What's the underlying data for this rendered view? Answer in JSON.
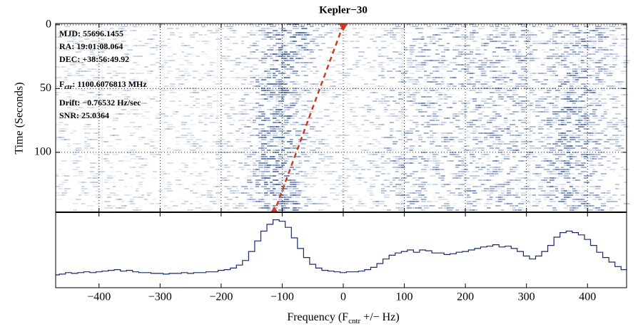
{
  "chart_data": {
    "type": "waterfall",
    "title": "Kepler−30",
    "ylabel": "Time (Seconds)",
    "xlabel": {
      "main": "Frequency (F",
      "sub": "cntr",
      "rest": " +/− Hz)"
    },
    "annotations": [
      "MJD: 55696.1455",
      "RA: 19:01:08.064",
      "DEC: +38:56:49.92"
    ],
    "fctr": {
      "main": "F",
      "sub": "ctr",
      "rest": ": 1100.6076813 MHz"
    },
    "annotations2": [
      "Drift: −0.76532 Hz/sec",
      "SNR: 25.0364"
    ],
    "xlim": [
      -471,
      464
    ],
    "xticks": [
      {
        "value": -400,
        "label": "−400"
      },
      {
        "value": -300,
        "label": "−300"
      },
      {
        "value": -200,
        "label": "−200"
      },
      {
        "value": -100,
        "label": "−100"
      },
      0,
      100,
      200,
      300,
      400
    ],
    "ylim": [
      -1,
      147
    ],
    "yticks": [
      0,
      50,
      100
    ],
    "grid": true,
    "drift_line": {
      "x": [
        0,
        -113
      ],
      "y": [
        0,
        147
      ],
      "color": "#d13b20"
    },
    "spectrum": {
      "color": "#1a2a6c",
      "ylim": [
        0,
        100
      ],
      "x": [
        -470,
        -460,
        -450,
        -440,
        -430,
        -420,
        -410,
        -400,
        -390,
        -380,
        -370,
        -360,
        -350,
        -340,
        -330,
        -320,
        -310,
        -300,
        -290,
        -280,
        -270,
        -260,
        -250,
        -240,
        -230,
        -220,
        -210,
        -200,
        -190,
        -180,
        -170,
        -160,
        -150,
        -140,
        -130,
        -120,
        -110,
        -100,
        -90,
        -80,
        -70,
        -60,
        -50,
        -40,
        -30,
        -20,
        -10,
        0,
        10,
        20,
        30,
        40,
        50,
        60,
        70,
        80,
        90,
        100,
        110,
        120,
        130,
        140,
        150,
        160,
        170,
        180,
        190,
        200,
        210,
        220,
        230,
        240,
        250,
        260,
        270,
        280,
        290,
        300,
        310,
        320,
        330,
        340,
        350,
        360,
        370,
        380,
        390,
        400,
        410,
        420,
        430,
        440,
        450,
        460
      ],
      "values": [
        17,
        18,
        20,
        19,
        20,
        21,
        20,
        21,
        22,
        23,
        24,
        22,
        23,
        21,
        20,
        20,
        19,
        19,
        18,
        19,
        19,
        20,
        19,
        20,
        20,
        21,
        21,
        23,
        24,
        26,
        30,
        36,
        48,
        62,
        75,
        84,
        90,
        88,
        80,
        66,
        52,
        40,
        31,
        26,
        23,
        22,
        21,
        20,
        21,
        21,
        22,
        24,
        27,
        32,
        38,
        43,
        46,
        48,
        50,
        47,
        50,
        49,
        46,
        46,
        44,
        45,
        47,
        48,
        50,
        52,
        54,
        55,
        57,
        54,
        55,
        52,
        48,
        42,
        38,
        42,
        48,
        56,
        67,
        73,
        75,
        73,
        70,
        64,
        56,
        47,
        40,
        34,
        28,
        24
      ]
    }
  }
}
